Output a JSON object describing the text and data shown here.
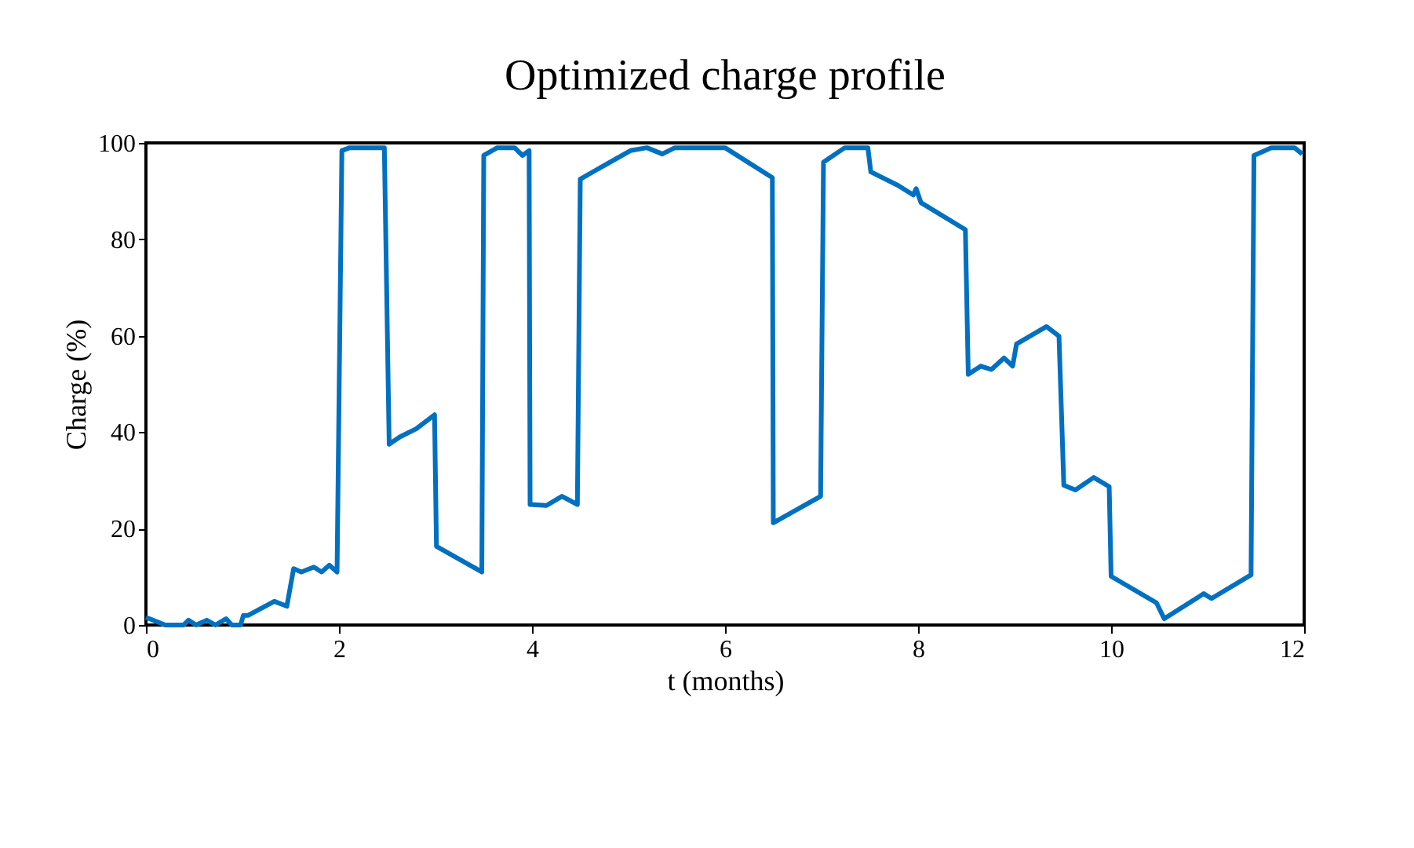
{
  "chart_data": {
    "type": "line",
    "title": "Optimized charge profile",
    "xlabel": "t (months)",
    "ylabel": "Charge (%)",
    "xlim": [
      0,
      12
    ],
    "xticks": [
      0,
      2,
      4,
      6,
      8,
      10,
      12
    ],
    "ylim": [
      0,
      100
    ],
    "yticks": [
      0,
      20,
      40,
      60,
      80,
      100
    ],
    "grid": false,
    "legend": false,
    "marker": "none",
    "line_style": "solid",
    "series": [
      {
        "color": "#0070c0",
        "x": [
          0,
          0.2,
          0.39,
          0.44,
          0.52,
          0.63,
          0.72,
          0.83,
          0.89,
          0.98,
          1.01,
          1.06,
          1.33,
          1.46,
          1.53,
          1.61,
          1.74,
          1.82,
          1.9,
          1.98,
          2.03,
          2.11,
          2.47,
          2.52,
          2.63,
          2.8,
          2.99,
          3.01,
          3.48,
          3.5,
          3.64,
          3.82,
          3.9,
          3.97,
          3.98,
          4.15,
          4.31,
          4.47,
          4.5,
          5.02,
          5.19,
          5.35,
          5.48,
          6,
          6.49,
          6.5,
          6.99,
          7.02,
          7.24,
          7.48,
          7.51,
          7.79,
          7.95,
          7.98,
          8.03,
          8.49,
          8.52,
          8.65,
          8.76,
          8.89,
          8.98,
          9.02,
          9.33,
          9.46,
          9.51,
          9.63,
          9.82,
          9.98,
          10,
          10.47,
          10.55,
          10.96,
          11.04,
          11.45,
          11.48,
          11.66,
          11.9,
          11.98
        ],
        "values": [
          1.6,
          0,
          0,
          1,
          0,
          1,
          0,
          1.3,
          0,
          0,
          2,
          2,
          4.9,
          3.9,
          11.7,
          11,
          12,
          11,
          12.4,
          11,
          98.4,
          99,
          99,
          37.5,
          39,
          40.7,
          43.6,
          16.3,
          11,
          97.4,
          99,
          99,
          97.4,
          98.4,
          25,
          24.8,
          26.7,
          25,
          92.5,
          98.4,
          99,
          97.7,
          99,
          99,
          92.8,
          21.2,
          26.7,
          96,
          99,
          99,
          94,
          91.2,
          89.2,
          90.5,
          87.6,
          82,
          52,
          53.7,
          53,
          55.4,
          53.7,
          58.3,
          61.9,
          59.9,
          29,
          28,
          30.6,
          28.7,
          10.1,
          4.6,
          1.3,
          6.5,
          5.5,
          10.4,
          97.4,
          99,
          99,
          97.7
        ]
      }
    ]
  }
}
